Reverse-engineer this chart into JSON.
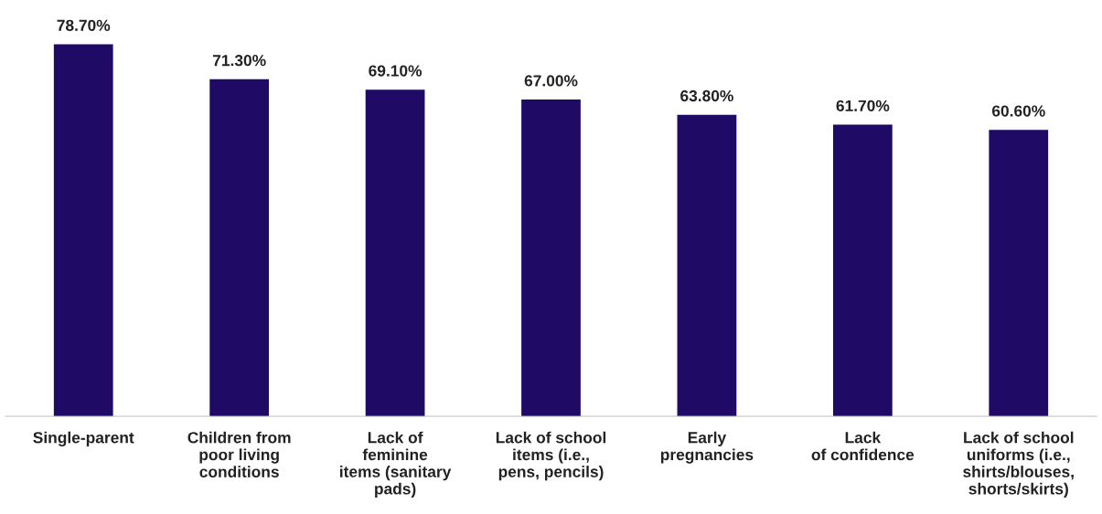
{
  "chart_data": {
    "type": "bar",
    "categories": [
      "Single-parent",
      "Children from\npoor living\nconditions",
      "Lack of\nfeminine\nitems (sanitary\npads)",
      "Lack of school\nitems (i.e.,\npens, pencils)",
      "Early\npregnancies",
      "Lack\nof confidence",
      "Lack of school\nuniforms (i.e.,\nshirts/blouses,\nshorts/skirts)"
    ],
    "values": [
      78.7,
      71.3,
      69.1,
      67.0,
      63.8,
      61.7,
      60.6
    ],
    "value_labels": [
      "78.70%",
      "71.30%",
      "69.10%",
      "67.00%",
      "63.80%",
      "61.70%",
      "60.60%"
    ],
    "color": "#1f0a66"
  }
}
